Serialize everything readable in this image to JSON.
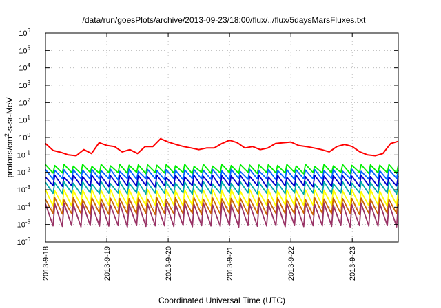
{
  "chart_data": {
    "type": "line",
    "title": "/data/run/goesPlots/archive/2013-09-23/18:00/flux/../flux/5daysMarsFluxes.txt",
    "xlabel": "Coordinated Universal Time (UTC)",
    "ylabel_base": "protons/cm",
    "ylabel_sup": "2",
    "ylabel_rest": "-s-sr-MeV",
    "scale": "log",
    "grid": true,
    "xlim": [
      "2013-09-18",
      "2013-09-23T18:00"
    ],
    "ylim": [
      1e-06,
      1000000.0
    ],
    "x_ticks": [
      "2013-9-18",
      "2013-9-19",
      "2013-9-20",
      "2013-9-21",
      "2013-9-22",
      "2013-9-23"
    ],
    "y_ticks": [
      {
        "base": "10",
        "exp": "-6"
      },
      {
        "base": "10",
        "exp": "-5"
      },
      {
        "base": "10",
        "exp": "-4"
      },
      {
        "base": "10",
        "exp": "-3"
      },
      {
        "base": "10",
        "exp": "-2"
      },
      {
        "base": "10",
        "exp": "-1"
      },
      {
        "base": "10",
        "exp": "0"
      },
      {
        "base": "10",
        "exp": "1"
      },
      {
        "base": "10",
        "exp": "2"
      },
      {
        "base": "10",
        "exp": "3"
      },
      {
        "base": "10",
        "exp": "4"
      },
      {
        "base": "10",
        "exp": "5"
      },
      {
        "base": "10",
        "exp": "6"
      }
    ],
    "series": [
      {
        "color": "#ff0000",
        "x": [
          "2013-09-18T00:00",
          "2013-09-18T03:00",
          "2013-09-18T06:00",
          "2013-09-18T09:00",
          "2013-09-18T12:00",
          "2013-09-18T15:00",
          "2013-09-18T18:00",
          "2013-09-18T21:00",
          "2013-09-19T00:00",
          "2013-09-19T03:00",
          "2013-09-19T06:00",
          "2013-09-19T09:00",
          "2013-09-19T12:00",
          "2013-09-19T15:00",
          "2013-09-19T18:00",
          "2013-09-19T21:00",
          "2013-09-20T00:00",
          "2013-09-20T03:00",
          "2013-09-20T06:00",
          "2013-09-20T09:00",
          "2013-09-20T12:00",
          "2013-09-20T15:00",
          "2013-09-20T18:00",
          "2013-09-20T21:00",
          "2013-09-21T00:00",
          "2013-09-21T03:00",
          "2013-09-21T06:00",
          "2013-09-21T09:00",
          "2013-09-21T12:00",
          "2013-09-21T15:00",
          "2013-09-21T18:00",
          "2013-09-21T21:00",
          "2013-09-22T00:00",
          "2013-09-22T03:00",
          "2013-09-22T06:00",
          "2013-09-22T09:00",
          "2013-09-22T12:00",
          "2013-09-22T15:00",
          "2013-09-22T18:00",
          "2013-09-22T21:00",
          "2013-09-23T00:00",
          "2013-09-23T03:00",
          "2013-09-23T06:00",
          "2013-09-23T09:00",
          "2013-09-23T12:00",
          "2013-09-23T15:00",
          "2013-09-23T18:00"
        ],
        "values": [
          0.45,
          0.18,
          0.14,
          0.1,
          0.09,
          0.2,
          0.12,
          0.5,
          0.35,
          0.3,
          0.15,
          0.2,
          0.12,
          0.3,
          0.3,
          0.85,
          0.55,
          0.4,
          0.3,
          0.25,
          0.2,
          0.25,
          0.25,
          0.45,
          0.7,
          0.5,
          0.25,
          0.3,
          0.2,
          0.25,
          0.45,
          0.5,
          0.55,
          0.35,
          0.3,
          0.25,
          0.2,
          0.15,
          0.3,
          0.4,
          0.3,
          0.15,
          0.1,
          0.09,
          0.12,
          0.45,
          0.6
        ]
      },
      {
        "color": "#00ee00",
        "band_min": 0.009,
        "band_max": 0.025,
        "teeth": 38
      },
      {
        "color": "#0066ff",
        "band_min": 0.004,
        "band_max": 0.013,
        "teeth": 38
      },
      {
        "color": "#0000cc",
        "band_min": 0.0016,
        "band_max": 0.006,
        "teeth": 38
      },
      {
        "color": "#00aaaa",
        "band_min": 0.0006,
        "band_max": 0.0025,
        "teeth": 38
      },
      {
        "color": "#ffff00",
        "band_min": 0.00012,
        "band_max": 0.0009,
        "teeth": 38
      },
      {
        "color": "#cc6600",
        "band_min": 4e-05,
        "band_max": 0.0003,
        "teeth": 38
      },
      {
        "color": "#993366",
        "band_min": 8e-06,
        "band_max": 0.00015,
        "teeth": 38
      }
    ]
  }
}
